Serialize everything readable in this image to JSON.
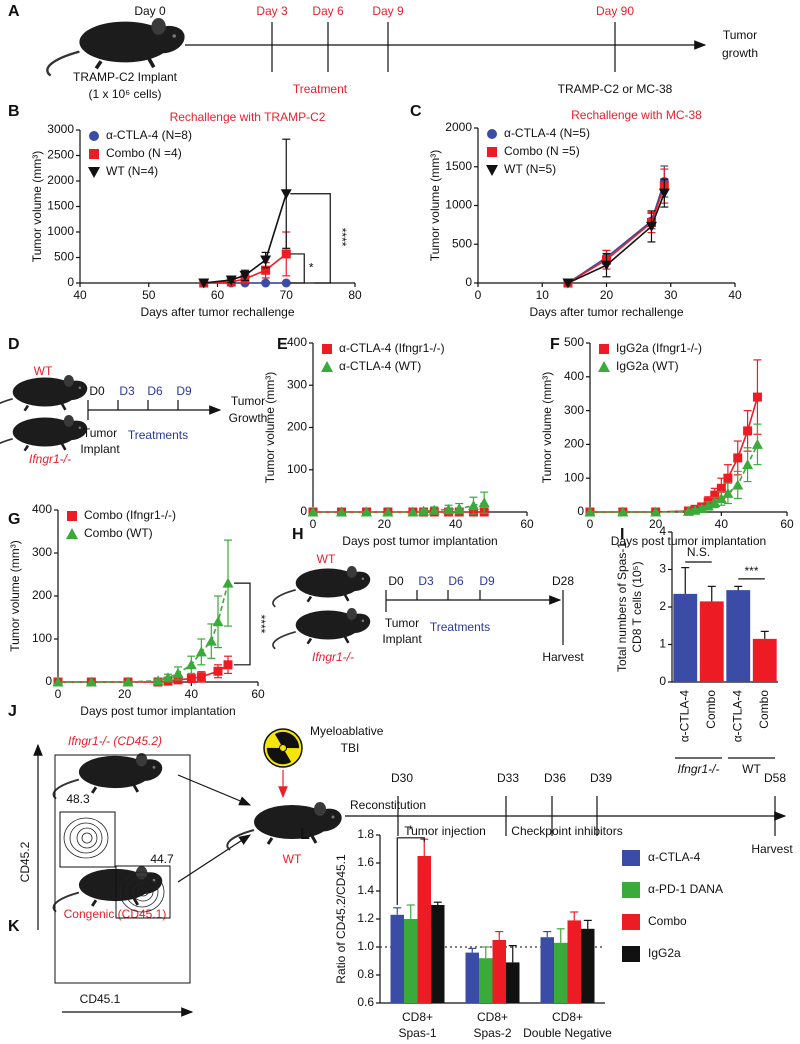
{
  "chart_data": [
    {
      "panel": "B",
      "type": "line",
      "title": "Rechallenge with TRAMP-C2",
      "title_color": "#e8202a",
      "xlabel": "Days after tumor rechallenge",
      "ylabel": "Tumor volume (mm³)",
      "xlim": [
        40,
        80
      ],
      "xticks": [
        40,
        50,
        60,
        70,
        80
      ],
      "ylim": [
        0,
        3000
      ],
      "yticks": [
        0,
        500,
        1000,
        1500,
        2000,
        2500,
        3000
      ],
      "legend": "upper left",
      "annotations": [
        "*",
        "****"
      ],
      "series": [
        {
          "name": "α-CTLA-4 (N=8)",
          "color": "#3a4ca6",
          "marker": "circle",
          "x": [
            58,
            62,
            64,
            67,
            70
          ],
          "values": [
            0,
            0,
            0,
            0,
            0
          ]
        },
        {
          "name": "Combo (N =4)",
          "color": "#ed1c24",
          "marker": "square",
          "x": [
            58,
            62,
            64,
            67,
            70
          ],
          "values": [
            0,
            20,
            80,
            250,
            570
          ],
          "errors": [
            0,
            20,
            60,
            150,
            430
          ]
        },
        {
          "name": "WT (N=4)",
          "color": "#111111",
          "marker": "triangle-down",
          "x": [
            58,
            62,
            64,
            67,
            70
          ],
          "values": [
            0,
            60,
            150,
            450,
            1750
          ],
          "errors": [
            0,
            50,
            100,
            150,
            1070
          ]
        }
      ]
    },
    {
      "panel": "C",
      "type": "line",
      "title": "Rechallenge with MC-38",
      "title_color": "#e8202a",
      "xlabel": "Days after tumor rechallenge",
      "ylabel": "Tumor volume (mm³)",
      "xlim": [
        0,
        40
      ],
      "xticks": [
        0,
        10,
        20,
        30,
        40
      ],
      "ylim": [
        0,
        2000
      ],
      "yticks": [
        0,
        500,
        1000,
        1500,
        2000
      ],
      "legend": "upper left",
      "series": [
        {
          "name": "α-CTLA-4 (N=5)",
          "color": "#3a4ca6",
          "marker": "circle",
          "x": [
            14,
            20,
            27,
            29
          ],
          "values": [
            0,
            330,
            800,
            1310
          ],
          "errors": [
            0,
            90,
            100,
            200
          ]
        },
        {
          "name": "Combo (N =5)",
          "color": "#ed1c24",
          "marker": "square",
          "x": [
            14,
            20,
            27,
            29
          ],
          "values": [
            0,
            300,
            780,
            1250
          ],
          "errors": [
            0,
            120,
            130,
            220
          ]
        },
        {
          "name": "WT (N=5)",
          "color": "#111111",
          "marker": "triangle-down",
          "x": [
            14,
            20,
            27,
            29
          ],
          "values": [
            0,
            230,
            730,
            1160
          ],
          "errors": [
            0,
            150,
            200,
            180
          ]
        }
      ]
    },
    {
      "panel": "E",
      "type": "line",
      "xlabel": "Days post tumor implantation",
      "ylabel": "Tumor volume (mm³)",
      "xlim": [
        0,
        60
      ],
      "xticks": [
        0,
        20,
        40,
        60
      ],
      "ylim": [
        0,
        400
      ],
      "yticks": [
        0,
        100,
        200,
        300,
        400
      ],
      "legend": "upper left",
      "series": [
        {
          "name": "α-CTLA-4 (Ifngr1-/-)",
          "color": "#ed1c24",
          "marker": "square",
          "x": [
            0,
            8,
            15,
            21,
            28,
            31,
            34,
            38,
            41,
            45,
            48
          ],
          "values": [
            0,
            0,
            0,
            0,
            0,
            0,
            0,
            0,
            0,
            0,
            0
          ]
        },
        {
          "name": "α-CTLA-4 (WT)",
          "color": "#3aab3a",
          "marker": "triangle",
          "line_style": "dashed",
          "x": [
            0,
            8,
            15,
            21,
            28,
            31,
            34,
            38,
            41,
            45,
            48
          ],
          "values": [
            0,
            0,
            0,
            0,
            0,
            2,
            4,
            6,
            8,
            15,
            22
          ],
          "errors": [
            0,
            0,
            0,
            0,
            0,
            4,
            8,
            10,
            12,
            20,
            25
          ]
        }
      ]
    },
    {
      "panel": "F",
      "type": "line",
      "xlabel": "Days post tumor implantation",
      "ylabel": "Tumor volume (mm³)",
      "xlim": [
        0,
        60
      ],
      "xticks": [
        0,
        20,
        40,
        60
      ],
      "ylim": [
        0,
        500
      ],
      "yticks": [
        0,
        100,
        200,
        300,
        400,
        500
      ],
      "legend": "upper left",
      "series": [
        {
          "name": "IgG2a (Ifngr1-/-)",
          "color": "#ed1c24",
          "marker": "square",
          "x": [
            0,
            10,
            20,
            30,
            32,
            34,
            36,
            38,
            40,
            42,
            45,
            48,
            51
          ],
          "values": [
            0,
            0,
            0,
            3,
            8,
            15,
            30,
            50,
            70,
            100,
            160,
            240,
            340
          ],
          "errors": [
            0,
            0,
            0,
            3,
            6,
            10,
            15,
            20,
            30,
            40,
            50,
            60,
            110
          ]
        },
        {
          "name": "IgG2a (WT)",
          "color": "#3aab3a",
          "marker": "triangle",
          "line_style": "dashed",
          "x": [
            0,
            10,
            20,
            30,
            32,
            34,
            36,
            38,
            40,
            42,
            45,
            48,
            51
          ],
          "values": [
            0,
            0,
            0,
            2,
            5,
            10,
            18,
            28,
            40,
            55,
            80,
            140,
            200
          ],
          "errors": [
            0,
            0,
            0,
            2,
            5,
            8,
            12,
            15,
            20,
            30,
            40,
            50,
            60
          ]
        }
      ]
    },
    {
      "panel": "G",
      "type": "line",
      "xlabel": "Days post tumor implantation",
      "ylabel": "Tumor volume (mm³)",
      "xlim": [
        0,
        60
      ],
      "xticks": [
        0,
        20,
        40,
        60
      ],
      "ylim": [
        0,
        400
      ],
      "yticks": [
        0,
        100,
        200,
        300,
        400
      ],
      "legend": "upper left",
      "annotations": [
        "****"
      ],
      "series": [
        {
          "name": "Combo (Ifngr1-/-)",
          "color": "#ed1c24",
          "marker": "square",
          "x": [
            0,
            10,
            21,
            30,
            33,
            36,
            40,
            43,
            48,
            51
          ],
          "values": [
            0,
            0,
            0,
            0,
            2,
            5,
            8,
            12,
            25,
            40
          ],
          "errors": [
            0,
            0,
            0,
            0,
            2,
            5,
            8,
            12,
            15,
            20
          ]
        },
        {
          "name": "Combo (WT)",
          "color": "#3aab3a",
          "marker": "triangle",
          "line_style": "dashed",
          "x": [
            0,
            10,
            21,
            30,
            33,
            36,
            40,
            43,
            46,
            48,
            51
          ],
          "values": [
            0,
            0,
            0,
            3,
            10,
            20,
            40,
            70,
            95,
            140,
            230
          ],
          "errors": [
            0,
            0,
            0,
            3,
            8,
            15,
            20,
            30,
            40,
            60,
            100
          ]
        }
      ]
    },
    {
      "panel": "I",
      "type": "bar",
      "ylabel": [
        "Total numbers of Spas-1",
        "CD8 T cells (10⁵)"
      ],
      "categories": [
        "α-CTLA-4",
        "Combo",
        "α-CTLA-4",
        "Combo"
      ],
      "values": [
        2.35,
        2.15,
        2.45,
        1.15
      ],
      "errors": [
        0.7,
        0.4,
        0.1,
        0.2
      ],
      "colors": [
        "#3a4ca6",
        "#ed1c24",
        "#3a4ca6",
        "#ed1c24"
      ],
      "ylim": [
        0,
        4
      ],
      "yticks": [
        0,
        1,
        2,
        3,
        4
      ],
      "group_labels": [
        "Ifngr1-/-",
        "WT"
      ],
      "annotations": [
        "N.S.",
        "***"
      ]
    },
    {
      "panel": "L",
      "type": "grouped_bar",
      "ylabel": "Ratio of CD45.2/CD45.1",
      "categories": [
        [
          "CD8+",
          "Spas-1"
        ],
        [
          "CD8+",
          "Spas-2"
        ],
        [
          "CD8+",
          "Double Negative"
        ]
      ],
      "ylim": [
        0.6,
        1.8
      ],
      "yticks": [
        0.6,
        0.8,
        {
          "value": 1,
          "label": "1.0"
        },
        1.2,
        1.4,
        1.6,
        1.8
      ],
      "reference_line": 1,
      "legend": "right",
      "annotations": [
        "*"
      ],
      "series": [
        {
          "name": "α-CTLA-4",
          "color": "#3a4ca6",
          "values": [
            1.23,
            0.96,
            1.07
          ],
          "errors": [
            0.05,
            0.03,
            0.04
          ]
        },
        {
          "name": "α-PD-1 DANA",
          "color": "#3aab3a",
          "values": [
            1.2,
            0.92,
            1.03
          ],
          "errors": [
            0.1,
            0.08,
            0.1
          ]
        },
        {
          "name": "Combo",
          "color": "#ed1c24",
          "values": [
            1.65,
            1.05,
            1.19
          ],
          "errors": [
            0.12,
            0.06,
            0.06
          ]
        },
        {
          "name": "IgG2a",
          "color": "#111111",
          "values": [
            1.3,
            0.89,
            1.13
          ],
          "errors": [
            0.02,
            0.12,
            0.06
          ]
        }
      ]
    }
  ],
  "timeline_a": {
    "panel": "A",
    "day0": "Day 0",
    "days": [
      "Day 3",
      "Day 6",
      "Day 9",
      "Day 90"
    ],
    "end": [
      "Tumor",
      "growth"
    ],
    "implant": [
      "TRAMP-C2 Implant",
      "(1 x 10⁶ cells)"
    ],
    "treatment": "Treatment",
    "rechallenge": "TRAMP-C2  or  MC-38"
  },
  "timeline_d": {
    "panel": "D",
    "mouse_labels": [
      "WT",
      "Ifngr1-/-"
    ],
    "days": [
      "D0",
      "D3",
      "D6",
      "D9"
    ],
    "end": [
      "Tumor",
      "Growth"
    ],
    "implant": [
      "Tumor",
      "Implant"
    ],
    "treatment": "Treatments"
  },
  "timeline_h": {
    "panel": "H",
    "mouse_labels": [
      "WT",
      "Ifngr1-/-"
    ],
    "days": [
      "D0",
      "D3",
      "D6",
      "D9",
      "D28"
    ],
    "end": "Harvest",
    "implant": [
      "Tumor",
      "Implant"
    ],
    "treatment": "Treatments"
  },
  "diagram_j": {
    "panel": "J",
    "donors": [
      "Ifngr1-/- (CD45.2)",
      "Congenic (CD45.1)"
    ],
    "tbi": [
      "Myeloablative",
      "TBI"
    ],
    "recipient": "WT",
    "reconstitution": "Reconstitution",
    "days": [
      "D30",
      "D33",
      "D36",
      "D39",
      "D58"
    ],
    "events": [
      "Tumor injection",
      "Checkpoint inhibitors",
      "Harvest"
    ]
  },
  "flow_k": {
    "panel": "K",
    "gates": [
      "48.3",
      "44.7"
    ],
    "y_label": "CD45.2",
    "x_label": "CD45.1"
  }
}
